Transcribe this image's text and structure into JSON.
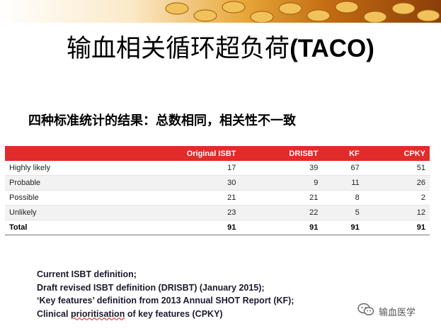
{
  "slide": {
    "title_cjk": "输血相关循环超负荷",
    "title_latin": "(TACO)",
    "subtitle": "四种标准统计的结果：总数相同，相关性不一致"
  },
  "table": {
    "headers": [
      "",
      "Original ISBT",
      "DRISBT",
      "KF",
      "CPKY"
    ],
    "rows": [
      {
        "label": "Highly likely",
        "values": [
          "17",
          "39",
          "67",
          "51"
        ]
      },
      {
        "label": "Probable",
        "values": [
          "30",
          "9",
          "11",
          "26"
        ]
      },
      {
        "label": "Possible",
        "values": [
          "21",
          "21",
          "8",
          "2"
        ]
      },
      {
        "label": "Unlikely",
        "values": [
          "23",
          "22",
          "5",
          "12"
        ]
      }
    ],
    "total": {
      "label": "Total",
      "values": [
        "91",
        "91",
        "91",
        "91"
      ]
    }
  },
  "notes": {
    "line1": "Current ISBT definition;",
    "line2": "Draft revised ISBT definition (DRISBT) (January 2015);",
    "line3": " ‘Key features’ definition from 2013 Annual SHOT Report (KF);",
    "line4_prefix": "Clinical ",
    "line4_underlined": "prioritisation",
    "line4_suffix": " of key features (CPKY)"
  },
  "watermark": {
    "text": "输血医学",
    "icon": "wechat-icon"
  },
  "colors": {
    "header_red": "#e02c2a",
    "banner_gold": "#e8a83a"
  }
}
